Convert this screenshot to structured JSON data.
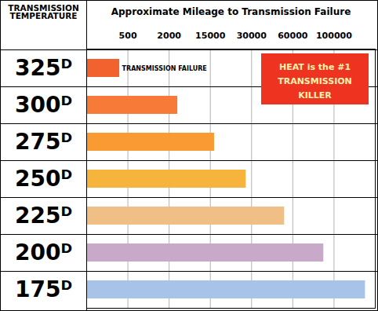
{
  "chart_data": {
    "type": "bar",
    "orientation": "horizontal",
    "title": "Approximate Mileage to Transmission Failure",
    "ylabel": "TRANSMISSION TEMPERATURE",
    "categories": [
      "325ᴰ",
      "300ᴰ",
      "275ᴰ",
      "250ᴰ",
      "225ᴰ",
      "200ᴰ",
      "175ᴰ"
    ],
    "values": [
      400,
      4700,
      16500,
      28000,
      54000,
      90000,
      138000
    ],
    "colors": [
      "#f2622e",
      "#f77a38",
      "#f99b32",
      "#f6b43c",
      "#efbf86",
      "#c9a9c9",
      "#a7c3e8"
    ],
    "xlim": [
      0,
      150000
    ],
    "xticks": [
      500,
      2000,
      15000,
      30000,
      60000,
      100000
    ],
    "grid": true,
    "annotations": [
      "TRANSMISSION FAILURE",
      "HEAT is the #1\nTRANSMISSION\nKILLER"
    ]
  }
}
